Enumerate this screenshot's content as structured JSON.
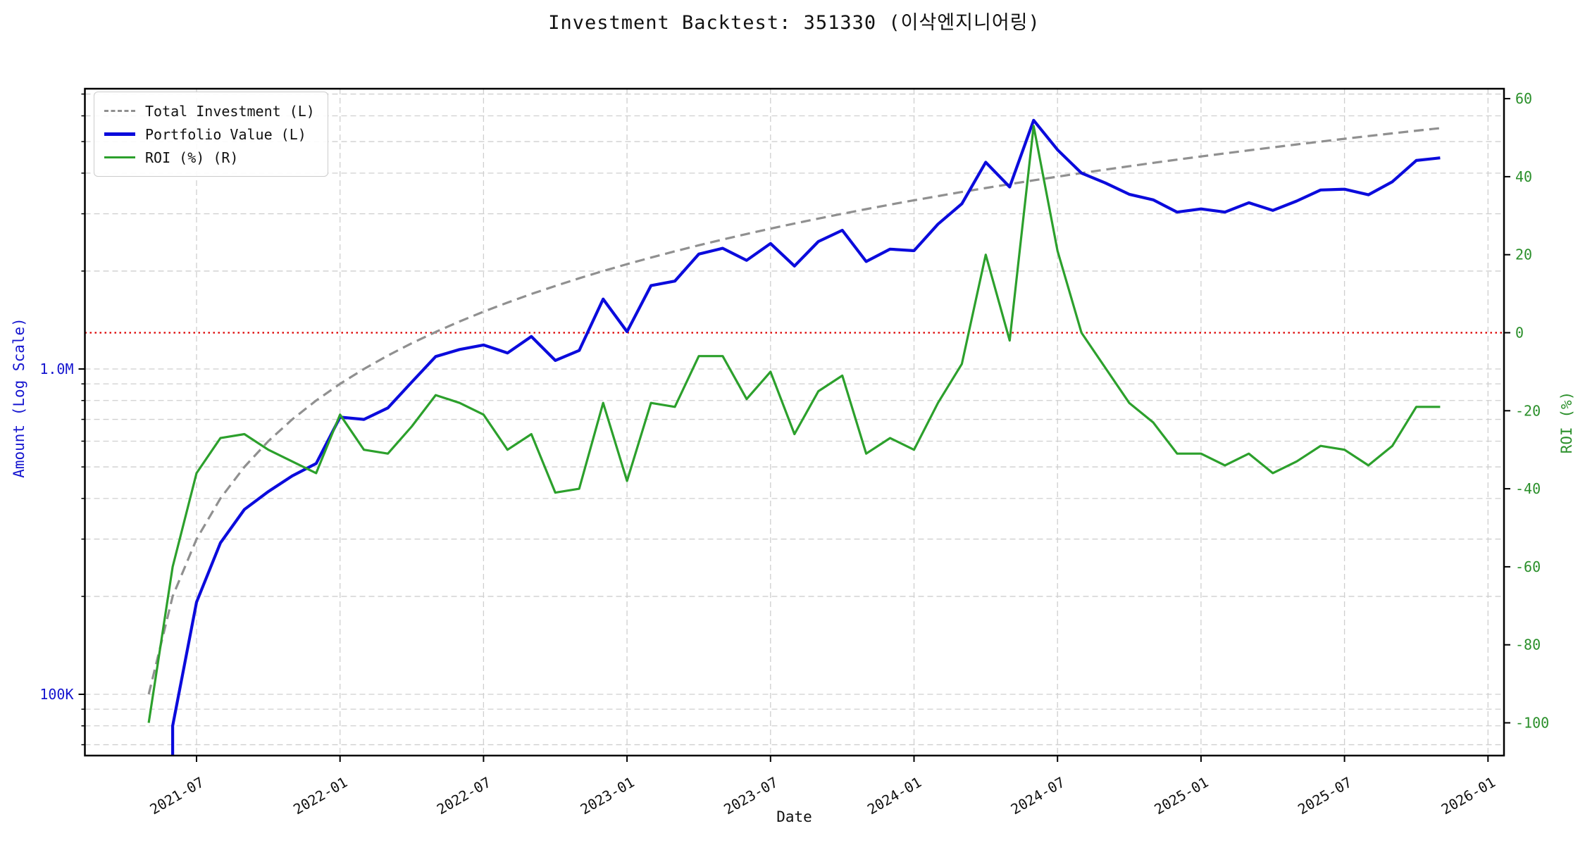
{
  "title": "Investment Backtest: 351330 (이삭엔지니어링)",
  "chart_data": {
    "type": "line",
    "title": "Investment Backtest: 351330 (이삭엔지니어링)",
    "xlabel": "Date",
    "ylabel_left": "Amount (Log Scale)",
    "ylabel_right": "ROI (%)",
    "legend_position": "upper-left",
    "grid": true,
    "x_monthly": [
      "2021-05",
      "2021-06",
      "2021-07",
      "2021-08",
      "2021-09",
      "2021-10",
      "2021-11",
      "2021-12",
      "2022-01",
      "2022-02",
      "2022-03",
      "2022-04",
      "2022-05",
      "2022-06",
      "2022-07",
      "2022-08",
      "2022-09",
      "2022-10",
      "2022-11",
      "2022-12",
      "2023-01",
      "2023-02",
      "2023-03",
      "2023-04",
      "2023-05",
      "2023-06",
      "2023-07",
      "2023-08",
      "2023-09",
      "2023-10",
      "2023-11",
      "2023-12",
      "2024-01",
      "2024-02",
      "2024-03",
      "2024-04",
      "2024-05",
      "2024-06",
      "2024-07",
      "2024-08",
      "2024-09",
      "2024-10",
      "2024-11",
      "2024-12",
      "2025-01",
      "2025-02",
      "2025-03",
      "2025-04",
      "2025-05",
      "2025-06",
      "2025-07",
      "2025-08",
      "2025-09",
      "2025-10",
      "2025-11"
    ],
    "series": [
      {
        "name": "Total Investment (L)",
        "axis": "left",
        "style": "dashed",
        "color": "#909090",
        "values_M": [
          0.1,
          0.2,
          0.3,
          0.4,
          0.5,
          0.6,
          0.7,
          0.8,
          0.9,
          1.0,
          1.1,
          1.2,
          1.3,
          1.4,
          1.5,
          1.6,
          1.7,
          1.8,
          1.9,
          2.0,
          2.1,
          2.2,
          2.3,
          2.4,
          2.5,
          2.6,
          2.7,
          2.8,
          2.9,
          3.0,
          3.1,
          3.2,
          3.3,
          3.4,
          3.5,
          3.6,
          3.7,
          3.8,
          3.9,
          4.0,
          4.1,
          4.2,
          4.3,
          4.4,
          4.5,
          4.6,
          4.7,
          4.8,
          4.9,
          5.0,
          5.1,
          5.2,
          5.3,
          5.4,
          5.5
        ]
      },
      {
        "name": "Portfolio Value (L)",
        "axis": "left",
        "style": "solid",
        "color": "#0b0bdc",
        "values_M": [
          0.0,
          0.08,
          0.192,
          0.292,
          0.37,
          0.42,
          0.469,
          0.512,
          0.711,
          0.7,
          0.759,
          0.912,
          1.092,
          1.148,
          1.185,
          1.12,
          1.258,
          1.062,
          1.14,
          1.64,
          1.302,
          1.804,
          1.863,
          2.256,
          2.35,
          2.158,
          2.43,
          2.072,
          2.465,
          2.67,
          2.139,
          2.336,
          2.31,
          2.788,
          3.22,
          4.32,
          3.626,
          5.814,
          4.719,
          4.0,
          3.731,
          3.444,
          3.311,
          3.036,
          3.105,
          3.036,
          3.243,
          3.072,
          3.283,
          3.55,
          3.57,
          3.432,
          3.763,
          4.374,
          4.455
        ]
      },
      {
        "name": "ROI (%) (R)",
        "axis": "right",
        "style": "solid",
        "color": "#2ca02c",
        "values_pct": [
          -100,
          -60,
          -36,
          -27,
          -26,
          -30,
          -33,
          -36,
          -21,
          -30,
          -31,
          -24,
          -16,
          -18,
          -21,
          -30,
          -26,
          -41,
          -40,
          -18,
          -38,
          -18,
          -19,
          -6,
          -6,
          -17,
          -10,
          -26,
          -15,
          -11,
          -31,
          -27,
          -30,
          -18,
          -8,
          20,
          -2,
          53,
          21,
          0,
          -9,
          -18,
          -23,
          -31,
          -31,
          -34,
          -31,
          -36,
          -33,
          -29,
          -30,
          -34,
          -29,
          -19,
          -19
        ]
      }
    ],
    "left_axis": {
      "scale": "log",
      "tick_labels": [
        "1.0M",
        "100K"
      ],
      "tick_values_M": [
        1.0,
        0.1
      ],
      "minor_gridlines_M": [
        0.07,
        0.08,
        0.09,
        0.2,
        0.3,
        0.4,
        0.5,
        0.6,
        0.7,
        0.8,
        0.9,
        2,
        3,
        4,
        5,
        6,
        7
      ],
      "color": "#1515cf"
    },
    "right_axis": {
      "tick_values": [
        60,
        40,
        20,
        0,
        -20,
        -40,
        -60,
        -80,
        -100
      ],
      "color": "#2a8f2a",
      "zero_line": 0,
      "zero_line_color": "#dd0000"
    },
    "x_ticks": {
      "labels": [
        "2021-07",
        "2022-01",
        "2022-07",
        "2023-01",
        "2023-07",
        "2024-01",
        "2024-07",
        "2025-01",
        "2025-07",
        "2026-01"
      ],
      "month_offsets": [
        2,
        8,
        14,
        20,
        26,
        32,
        38,
        44,
        50,
        56
      ]
    },
    "colors": {
      "grid": "#cfcfcf",
      "frame": "#000000",
      "background": "#ffffff"
    }
  }
}
